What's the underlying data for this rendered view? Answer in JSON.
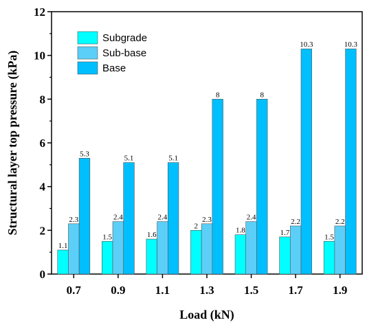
{
  "chart_data": {
    "type": "bar",
    "categories": [
      "0.7",
      "0.9",
      "1.1",
      "1.3",
      "1.5",
      "1.7",
      "1.9"
    ],
    "series": [
      {
        "name": "Subgrade",
        "color": "#00FFFF",
        "values": [
          1.1,
          1.5,
          1.6,
          2,
          1.8,
          1.7,
          1.5
        ],
        "labels": [
          "1.1",
          "1.5",
          "1.6",
          "2",
          "1.8",
          "1.7",
          "1.5"
        ]
      },
      {
        "name": "Sub-base",
        "color": "#5BCFF7",
        "values": [
          2.3,
          2.4,
          2.4,
          2.3,
          2.4,
          2.2,
          2.2
        ],
        "labels": [
          "2.3",
          "2.4",
          "2.4",
          "2.3",
          "2.4",
          "2.2",
          "2.2"
        ]
      },
      {
        "name": "Base",
        "color": "#00BFFF",
        "values": [
          5.3,
          5.1,
          5.1,
          8,
          8,
          10.3,
          10.3
        ],
        "labels": [
          "5.3",
          "5.1",
          "5.1",
          "8",
          "8",
          "10.3",
          "10.3"
        ]
      }
    ],
    "xlabel": "Load (kN)",
    "ylabel": "Structural layer top pressure (kPa)",
    "ylim": [
      0,
      12
    ],
    "yticks": [
      "0",
      "2",
      "4",
      "6",
      "8",
      "10",
      "12"
    ],
    "grid": false,
    "legend": "top-left"
  }
}
